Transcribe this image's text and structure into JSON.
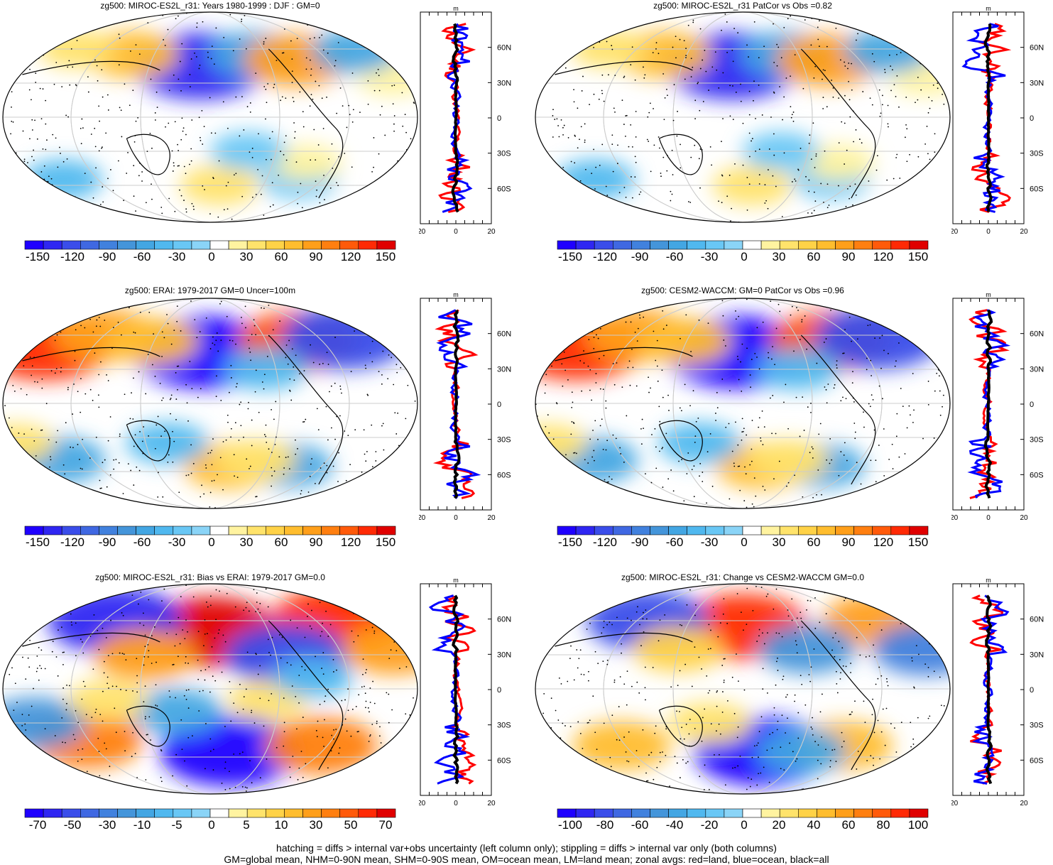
{
  "chart_data": [
    {
      "type": "heatmap",
      "title": "zg500: MIROC-ES2L_r31: Years 1980-1999 : DJF : GM=0",
      "colorbar_levels": [
        -150,
        -140,
        -130,
        -120,
        -110,
        -100,
        -90,
        -80,
        -70,
        -60,
        -50,
        -40,
        -30,
        -20,
        -10,
        0,
        10,
        20,
        30,
        40,
        50,
        60,
        70,
        80,
        90,
        100,
        110,
        120,
        130,
        140,
        150
      ],
      "colorbar_ticks": [
        "-150",
        "-120",
        "-90",
        "-60",
        "-30",
        "0",
        "30",
        "60",
        "90",
        "120",
        "150"
      ],
      "zonal_profile": {
        "xlabel": "m",
        "xlim": [
          -20,
          20
        ],
        "xticks": [
          "-20",
          "0",
          "20"
        ],
        "lat_ticks": [
          "60N",
          "30N",
          "0",
          "30S",
          "60S"
        ],
        "series": [
          {
            "name": "land",
            "color": "#ff0000"
          },
          {
            "name": "ocean",
            "color": "#0000ff"
          },
          {
            "name": "all",
            "color": "#000000"
          }
        ]
      },
      "anomalies": [
        {
          "lon": 140,
          "lat": 45,
          "v": -130
        },
        {
          "lon": -165,
          "lat": 55,
          "v": -60
        },
        {
          "lon": -125,
          "lat": 50,
          "v": 80
        },
        {
          "lon": 70,
          "lat": 55,
          "v": 60
        },
        {
          "lon": 10,
          "lat": 60,
          "v": 30
        },
        {
          "lon": -40,
          "lat": 35,
          "v": 25
        },
        {
          "lon": -60,
          "lat": 58,
          "v": -50
        },
        {
          "lon": -120,
          "lat": -55,
          "v": -30
        },
        {
          "lon": 0,
          "lat": -55,
          "v": -35
        },
        {
          "lon": 160,
          "lat": -60,
          "v": 35
        },
        {
          "lon": -120,
          "lat": -40,
          "v": 25
        },
        {
          "lon": -175,
          "lat": -30,
          "v": -30
        }
      ]
    },
    {
      "type": "heatmap",
      "title": "zg500: MIROC-ES2L_r31 PatCor vs Obs =0.82",
      "colorbar_levels": [
        -150,
        -140,
        -130,
        -120,
        -110,
        -100,
        -90,
        -80,
        -70,
        -60,
        -50,
        -40,
        -30,
        -20,
        -10,
        0,
        10,
        20,
        30,
        40,
        50,
        60,
        70,
        80,
        90,
        100,
        110,
        120,
        130,
        140,
        150
      ],
      "colorbar_ticks": [
        "-150",
        "-120",
        "-90",
        "-60",
        "-30",
        "0",
        "30",
        "60",
        "90",
        "120",
        "150"
      ],
      "zonal_profile": {
        "xlabel": "m",
        "xlim": [
          -20,
          20
        ],
        "xticks": [
          "-20",
          "0",
          "20"
        ],
        "lat_ticks": [
          "60N",
          "30N",
          "0",
          "30S",
          "60S"
        ],
        "series": [
          {
            "name": "land",
            "color": "#ff0000"
          },
          {
            "name": "ocean",
            "color": "#0000ff"
          },
          {
            "name": "all",
            "color": "#000000"
          }
        ]
      },
      "anomalies": [
        {
          "lon": 140,
          "lat": 45,
          "v": -130
        },
        {
          "lon": -165,
          "lat": 55,
          "v": -60
        },
        {
          "lon": -125,
          "lat": 50,
          "v": 80
        },
        {
          "lon": 70,
          "lat": 55,
          "v": 60
        },
        {
          "lon": 10,
          "lat": 60,
          "v": 30
        },
        {
          "lon": -40,
          "lat": 35,
          "v": 25
        },
        {
          "lon": -60,
          "lat": 58,
          "v": -50
        },
        {
          "lon": -120,
          "lat": -55,
          "v": -30
        },
        {
          "lon": 0,
          "lat": -55,
          "v": -35
        },
        {
          "lon": 160,
          "lat": -60,
          "v": 35
        },
        {
          "lon": -120,
          "lat": -40,
          "v": 25
        },
        {
          "lon": -175,
          "lat": -30,
          "v": -30
        }
      ]
    },
    {
      "type": "heatmap",
      "title": "zg500: ERAI: 1979-2017 GM=0 Uncer=100m",
      "colorbar_levels": [
        -150,
        -140,
        -130,
        -120,
        -110,
        -100,
        -90,
        -80,
        -70,
        -60,
        -50,
        -40,
        -30,
        -20,
        -10,
        0,
        10,
        20,
        30,
        40,
        50,
        60,
        70,
        80,
        90,
        100,
        110,
        120,
        130,
        140,
        150
      ],
      "colorbar_ticks": [
        "-150",
        "-120",
        "-90",
        "-60",
        "-30",
        "0",
        "30",
        "60",
        "90",
        "120",
        "150"
      ],
      "zonal_profile": {
        "xlabel": "m",
        "xlim": [
          -20,
          20
        ],
        "xticks": [
          "-20",
          "0",
          "20"
        ],
        "lat_ticks": [
          "60N",
          "30N",
          "0",
          "30S",
          "60S"
        ],
        "series": [
          {
            "name": "land",
            "color": "#ff0000"
          },
          {
            "name": "ocean",
            "color": "#0000ff"
          },
          {
            "name": "all",
            "color": "#000000"
          }
        ]
      },
      "anomalies": [
        {
          "lon": 145,
          "lat": 45,
          "v": -150
        },
        {
          "lon": -120,
          "lat": 55,
          "v": 110
        },
        {
          "lon": -70,
          "lat": 58,
          "v": -120
        },
        {
          "lon": -15,
          "lat": 50,
          "v": 130
        },
        {
          "lon": 40,
          "lat": 60,
          "v": 80
        },
        {
          "lon": 90,
          "lat": 55,
          "v": 60
        },
        {
          "lon": -160,
          "lat": 30,
          "v": -40
        },
        {
          "lon": 0,
          "lat": -50,
          "v": -60
        },
        {
          "lon": -130,
          "lat": -55,
          "v": -50
        },
        {
          "lon": 170,
          "lat": -55,
          "v": 60
        },
        {
          "lon": -165,
          "lat": -50,
          "v": 40
        },
        {
          "lon": 110,
          "lat": -35,
          "v": -40
        },
        {
          "lon": -30,
          "lat": -35,
          "v": 30
        }
      ]
    },
    {
      "type": "heatmap",
      "title": "zg500: CESM2-WACCM: GM=0 PatCor vs Obs =0.96",
      "colorbar_levels": [
        -150,
        -140,
        -130,
        -120,
        -110,
        -100,
        -90,
        -80,
        -70,
        -60,
        -50,
        -40,
        -30,
        -20,
        -10,
        0,
        10,
        20,
        30,
        40,
        50,
        60,
        70,
        80,
        90,
        100,
        110,
        120,
        130,
        140,
        150
      ],
      "colorbar_ticks": [
        "-150",
        "-120",
        "-90",
        "-60",
        "-30",
        "0",
        "30",
        "60",
        "90",
        "120",
        "150"
      ],
      "zonal_profile": {
        "xlabel": "m",
        "xlim": [
          -20,
          20
        ],
        "xticks": [
          "-20",
          "0",
          "20"
        ],
        "lat_ticks": [
          "60N",
          "30N",
          "0",
          "30S",
          "60S"
        ],
        "series": [
          {
            "name": "land",
            "color": "#ff0000"
          },
          {
            "name": "ocean",
            "color": "#0000ff"
          },
          {
            "name": "all",
            "color": "#000000"
          }
        ]
      },
      "anomalies": [
        {
          "lon": 145,
          "lat": 45,
          "v": -150
        },
        {
          "lon": -120,
          "lat": 55,
          "v": 110
        },
        {
          "lon": -70,
          "lat": 58,
          "v": -120
        },
        {
          "lon": -15,
          "lat": 50,
          "v": 130
        },
        {
          "lon": 40,
          "lat": 60,
          "v": 80
        },
        {
          "lon": 90,
          "lat": 55,
          "v": 60
        },
        {
          "lon": -160,
          "lat": 30,
          "v": -40
        },
        {
          "lon": 0,
          "lat": -50,
          "v": -60
        },
        {
          "lon": -130,
          "lat": -55,
          "v": -50
        },
        {
          "lon": 170,
          "lat": -55,
          "v": 60
        },
        {
          "lon": -165,
          "lat": -50,
          "v": 40
        },
        {
          "lon": 110,
          "lat": -35,
          "v": -40
        },
        {
          "lon": -30,
          "lat": -35,
          "v": 30
        }
      ]
    },
    {
      "type": "heatmap",
      "title": "zg500: MIROC-ES2L_r31: Bias vs ERAI: 1979-2017 GM=0.0",
      "colorbar_levels": [
        -80,
        -70,
        -60,
        -50,
        -40,
        -30,
        -20,
        -10,
        -7.5,
        -5,
        -2.5,
        0,
        2.5,
        5,
        7.5,
        10,
        20,
        30,
        40,
        50,
        60,
        70,
        80
      ],
      "colorbar_ticks": [
        "-70",
        "-50",
        "-30",
        "-10",
        "-5",
        "0",
        "5",
        "10",
        "30",
        "50",
        "70"
      ],
      "zonal_profile": {
        "xlabel": "m",
        "xlim": [
          -20,
          20
        ],
        "xticks": [
          "-20",
          "0",
          "20"
        ],
        "lat_ticks": [
          "60N",
          "30N",
          "0",
          "30S",
          "60S"
        ],
        "series": [
          {
            "name": "land",
            "color": "#ff0000"
          },
          {
            "name": "ocean",
            "color": "#0000ff"
          },
          {
            "name": "all",
            "color": "#000000"
          }
        ]
      },
      "anomalies": [
        {
          "lon": 150,
          "lat": 50,
          "v": 75
        },
        {
          "lon": 50,
          "lat": 60,
          "v": -70
        },
        {
          "lon": -75,
          "lat": 60,
          "v": 70
        },
        {
          "lon": -140,
          "lat": 30,
          "v": -60
        },
        {
          "lon": 90,
          "lat": 30,
          "v": 40
        },
        {
          "lon": -40,
          "lat": 35,
          "v": 40
        },
        {
          "lon": 170,
          "lat": -55,
          "v": -75
        },
        {
          "lon": -100,
          "lat": -50,
          "v": 50
        },
        {
          "lon": 30,
          "lat": -45,
          "v": 50
        },
        {
          "lon": -10,
          "lat": -30,
          "v": -40
        },
        {
          "lon": 120,
          "lat": -20,
          "v": -30
        },
        {
          "lon": -160,
          "lat": -10,
          "v": 20
        },
        {
          "lon": -120,
          "lat": 10,
          "v": -20
        },
        {
          "lon": 60,
          "lat": -10,
          "v": 20
        }
      ]
    },
    {
      "type": "heatmap",
      "title": "zg500: MIROC-ES2L_r31: Change vs CESM2-WACCM GM=0.0",
      "colorbar_levels": [
        -110,
        -100,
        -90,
        -80,
        -70,
        -60,
        -50,
        -40,
        -30,
        -20,
        -10,
        0,
        10,
        20,
        30,
        40,
        50,
        60,
        70,
        80,
        90,
        100,
        110
      ],
      "colorbar_ticks": [
        "-100",
        "-80",
        "-60",
        "-40",
        "-20",
        "0",
        "20",
        "40",
        "60",
        "80",
        "100"
      ],
      "zonal_profile": {
        "xlabel": "m",
        "xlim": [
          -20,
          20
        ],
        "xticks": [
          "-20",
          "20"
        ],
        "lat_ticks": [
          "60N",
          "30N",
          "0",
          "30S",
          "60S"
        ],
        "series": [
          {
            "name": "land",
            "color": "#ff0000"
          },
          {
            "name": "ocean",
            "color": "#0000ff"
          },
          {
            "name": "all",
            "color": "#000000"
          }
        ]
      },
      "anomalies": [
        {
          "lon": 150,
          "lat": 55,
          "v": 90
        },
        {
          "lon": 50,
          "lat": 60,
          "v": -80
        },
        {
          "lon": -70,
          "lat": 60,
          "v": 60
        },
        {
          "lon": -150,
          "lat": 35,
          "v": -50
        },
        {
          "lon": -40,
          "lat": 35,
          "v": -60
        },
        {
          "lon": 90,
          "lat": 35,
          "v": 40
        },
        {
          "lon": 170,
          "lat": -55,
          "v": -100
        },
        {
          "lon": -110,
          "lat": -50,
          "v": 50
        },
        {
          "lon": 30,
          "lat": -50,
          "v": 50
        },
        {
          "lon": -150,
          "lat": -55,
          "v": -40
        },
        {
          "lon": 120,
          "lat": -30,
          "v": 30
        }
      ]
    }
  ],
  "footer": {
    "line1": "hatching = diffs > internal var+obs uncertainty (left column only); stippling = diffs > internal var only (both columns)",
    "line2": "GM=global mean, NHM=0-90N mean, SHM=0-90S mean, OM=ocean mean, LM=land mean; zonal avgs: red=land, blue=ocean, black=all"
  },
  "colors": {
    "palette": [
      "#1f00ff",
      "#2f26f2",
      "#3a4dea",
      "#3f68e2",
      "#4181de",
      "#4495da",
      "#43a6e3",
      "#50b8ef",
      "#69c7f5",
      "#8ad4f7",
      "#ffffff",
      "#fff3a0",
      "#ffe36b",
      "#ffd247",
      "#ffbd2e",
      "#ff9f1a",
      "#ff7f10",
      "#ff5a0a",
      "#ff2a05",
      "#e00000"
    ],
    "land": "#ff0000",
    "ocean": "#0000ff",
    "all": "#000000"
  }
}
